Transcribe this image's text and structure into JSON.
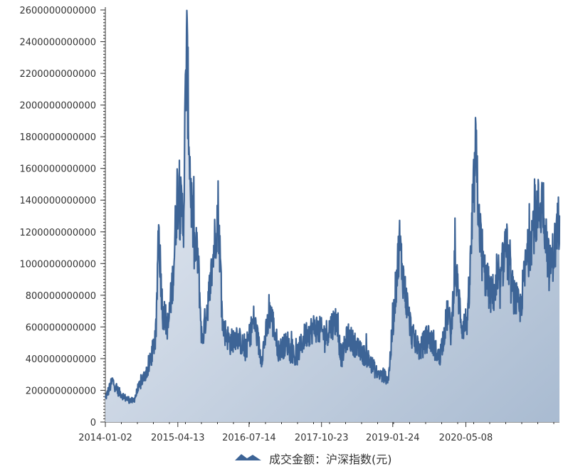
{
  "chart_data": {
    "type": "area",
    "title": "",
    "xlabel": "",
    "ylabel": "",
    "ylim": [
      0,
      2600000000000
    ],
    "y_ticks": [
      0,
      200000000000,
      400000000000,
      600000000000,
      800000000000,
      1000000000000,
      1200000000000,
      1400000000000,
      1600000000000,
      1800000000000,
      2000000000000,
      2200000000000,
      2400000000000,
      2600000000000
    ],
    "y_tick_labels": [
      "0",
      "200000000000",
      "400000000000",
      "600000000000",
      "800000000000",
      "1000000000000",
      "1200000000000",
      "1400000000000",
      "1600000000000",
      "1800000000000",
      "2000000000000",
      "2200000000000",
      "2400000000000",
      "2600000000000"
    ],
    "xlim": [
      "2014-01-02",
      "2021-12-31"
    ],
    "x_tick_labels": [
      "2014-01-02",
      "2015-04-13",
      "2016-07-14",
      "2017-10-23",
      "2019-01-24",
      "2020-05-08"
    ],
    "grid": false,
    "legend_position": "bottom-center",
    "series": [
      {
        "name": "成交金额：沪深指数(元)",
        "color": "#3d6496",
        "fill_top": "#eef1f7",
        "fill_bottom": "#a9bbd1",
        "x": [
          "2014-01-02",
          "2014-02-17",
          "2014-03-20",
          "2014-05-12",
          "2014-06-30",
          "2014-08-20",
          "2014-10-10",
          "2014-11-25",
          "2014-12-09",
          "2015-01-05",
          "2015-02-10",
          "2015-03-16",
          "2015-04-09",
          "2015-04-28",
          "2015-05-20",
          "2015-06-08",
          "2015-07-03",
          "2015-07-27",
          "2015-08-20",
          "2015-09-15",
          "2015-11-06",
          "2015-12-28",
          "2016-01-28",
          "2016-03-15",
          "2016-04-25",
          "2016-06-20",
          "2016-08-15",
          "2016-09-30",
          "2016-11-28",
          "2017-01-20",
          "2017-03-20",
          "2017-05-10",
          "2017-07-10",
          "2017-09-12",
          "2017-11-14",
          "2018-01-25",
          "2018-02-28",
          "2018-04-10",
          "2018-06-20",
          "2018-08-20",
          "2018-10-19",
          "2018-12-28",
          "2019-02-25",
          "2019-03-07",
          "2019-04-08",
          "2019-05-27",
          "2019-07-15",
          "2019-09-10",
          "2019-11-20",
          "2020-01-14",
          "2020-02-04",
          "2020-02-26",
          "2020-04-15",
          "2020-05-22",
          "2020-07-09",
          "2020-08-20",
          "2020-10-15",
          "2020-12-15",
          "2021-01-19",
          "2021-02-26",
          "2021-04-20",
          "2021-05-31",
          "2021-07-27",
          "2021-09-15",
          "2021-10-28",
          "2021-12-10",
          "2021-12-31"
        ],
        "values": [
          150000000000,
          260000000000,
          200000000000,
          150000000000,
          130000000000,
          250000000000,
          350000000000,
          550000000000,
          1250000000000,
          700000000000,
          600000000000,
          950000000000,
          1450000000000,
          1350000000000,
          1300000000000,
          2400000000000,
          1500000000000,
          1100000000000,
          1050000000000,
          500000000000,
          850000000000,
          1350000000000,
          600000000000,
          500000000000,
          550000000000,
          450000000000,
          650000000000,
          400000000000,
          700000000000,
          450000000000,
          500000000000,
          400000000000,
          550000000000,
          600000000000,
          550000000000,
          650000000000,
          400000000000,
          550000000000,
          450000000000,
          400000000000,
          300000000000,
          280000000000,
          1000000000000,
          1150000000000,
          850000000000,
          550000000000,
          450000000000,
          550000000000,
          400000000000,
          700000000000,
          550000000000,
          1000000000000,
          600000000000,
          650000000000,
          1700000000000,
          1000000000000,
          800000000000,
          850000000000,
          1150000000000,
          850000000000,
          700000000000,
          1000000000000,
          1300000000000,
          1400000000000,
          950000000000,
          1150000000000,
          1300000000000
        ]
      }
    ]
  },
  "legend": {
    "label": "成交金额：沪深指数(元)"
  }
}
